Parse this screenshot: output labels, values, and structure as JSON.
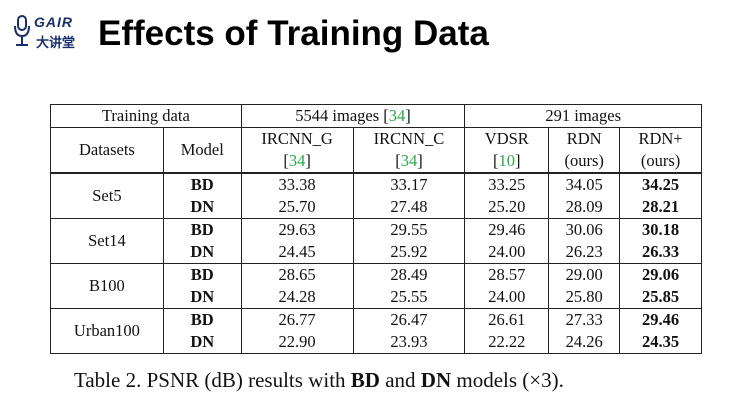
{
  "logo": {
    "word": "GAIR",
    "cn": "大讲堂"
  },
  "page_title": "Effects of Training Data",
  "table": {
    "header1": {
      "training_data": "Training data",
      "group1": "5544 images [",
      "group1_cite": "34",
      "group1_close": "]",
      "group2": "291 images"
    },
    "header2": {
      "datasets": "Datasets",
      "model": "Model",
      "m1_name": "IRCNN_G",
      "m1_cite": "34",
      "m2_name": "IRCNN_C",
      "m2_cite": "34",
      "m3_name": "VDSR",
      "m3_cite": "10",
      "m4_name": "RDN",
      "m4_sub": "(ours)",
      "m5_name": "RDN+",
      "m5_sub": "(ours)"
    },
    "rows": [
      {
        "dataset": "Set5",
        "bd": [
          "33.38",
          "33.17",
          "33.25",
          "34.05",
          "34.25"
        ],
        "dn": [
          "25.70",
          "27.48",
          "25.20",
          "28.09",
          "28.21"
        ]
      },
      {
        "dataset": "Set14",
        "bd": [
          "29.63",
          "29.55",
          "29.46",
          "30.06",
          "30.18"
        ],
        "dn": [
          "24.45",
          "25.92",
          "24.00",
          "26.23",
          "26.33"
        ]
      },
      {
        "dataset": "B100",
        "bd": [
          "28.65",
          "28.49",
          "28.57",
          "29.00",
          "29.06"
        ],
        "dn": [
          "24.28",
          "25.55",
          "24.00",
          "25.80",
          "25.85"
        ]
      },
      {
        "dataset": "Urban100",
        "bd": [
          "26.77",
          "26.47",
          "26.61",
          "27.33",
          "29.46"
        ],
        "dn": [
          "22.90",
          "23.93",
          "22.22",
          "24.26",
          "24.35"
        ]
      }
    ],
    "model_bd": "BD",
    "model_dn": "DN"
  },
  "caption": {
    "pre": "Table 2. PSNR (dB) results with ",
    "bd": "BD",
    "mid": " and ",
    "dn": "DN",
    "post": " models (×3)."
  }
}
